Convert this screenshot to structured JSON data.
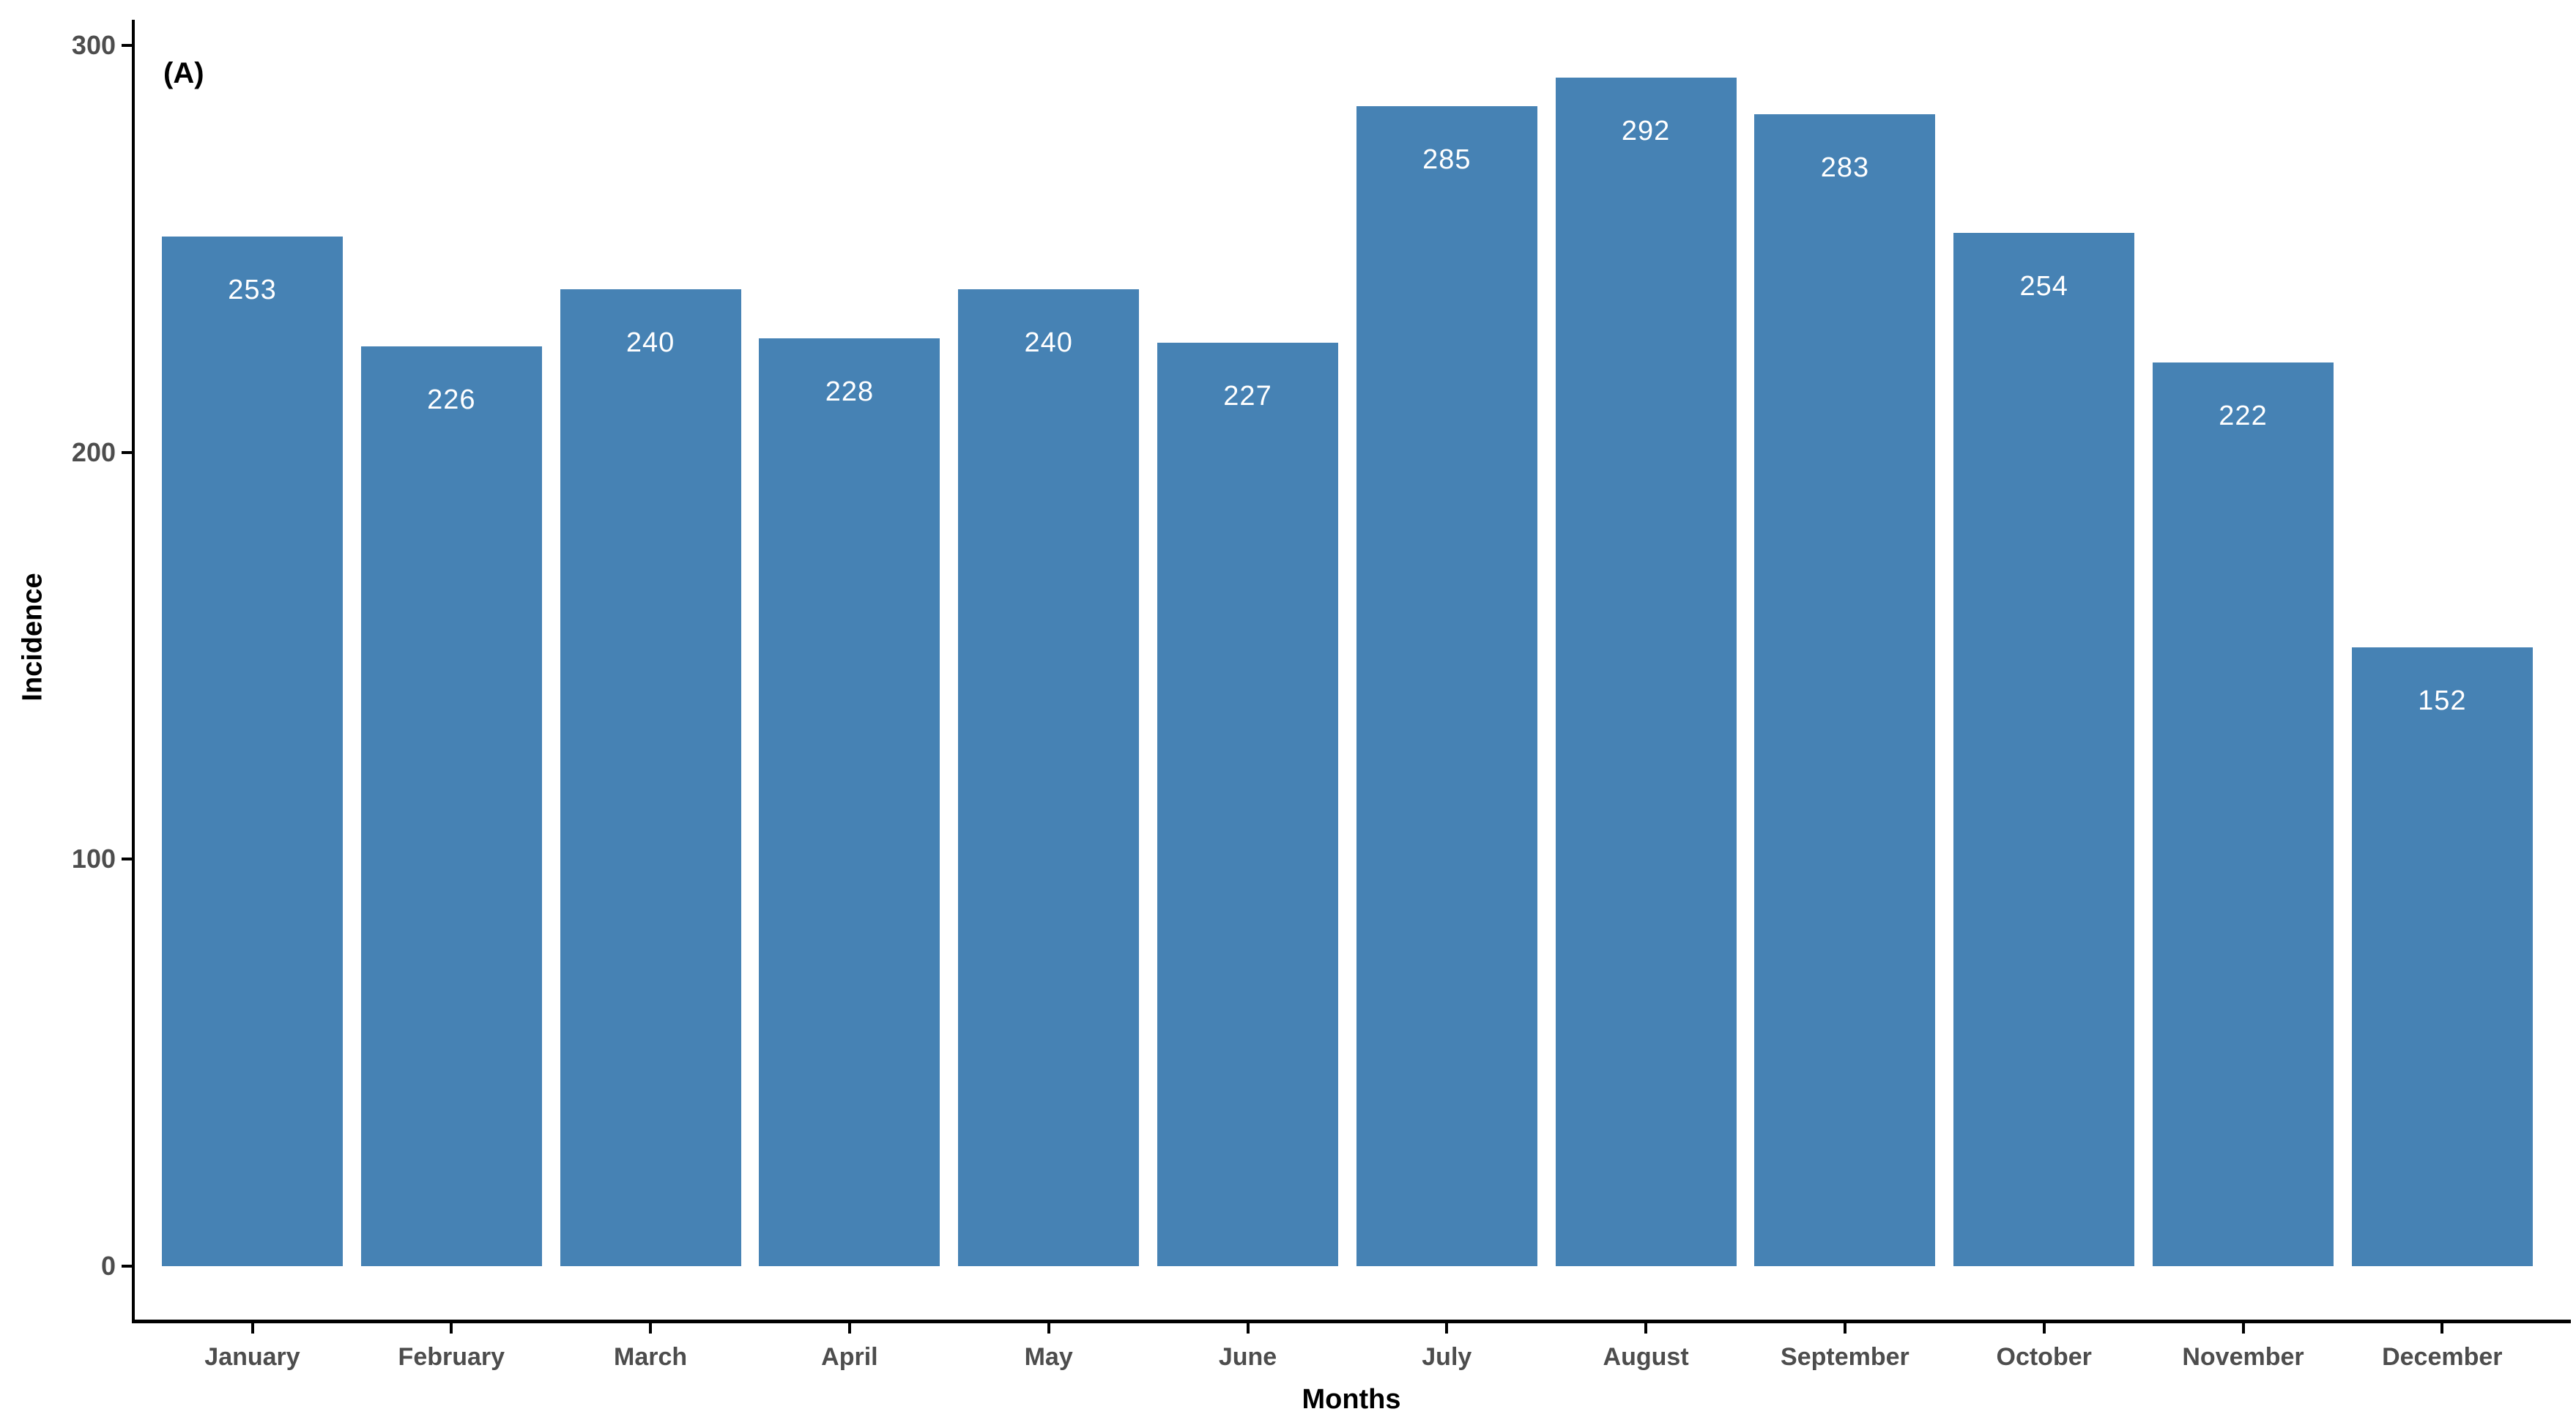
{
  "chart_data": {
    "type": "bar",
    "panel_label": "(A)",
    "title": "",
    "xlabel": "Months",
    "ylabel": "Incidence",
    "categories": [
      "January",
      "February",
      "March",
      "April",
      "May",
      "June",
      "July",
      "August",
      "September",
      "October",
      "November",
      "December"
    ],
    "values": [
      253,
      226,
      240,
      228,
      240,
      227,
      285,
      292,
      283,
      254,
      222,
      152
    ],
    "yticks": [
      0,
      100,
      200,
      300
    ],
    "ylim": [
      0,
      300
    ],
    "legend": "none",
    "grid": "off",
    "bar_color": "#4682B4",
    "value_label_color": "#ffffff",
    "axis_tick_text_color": "#4d4d4d",
    "axis_title_color": "#000000",
    "axis_line_color": "#000000",
    "background_color": "#ffffff"
  }
}
